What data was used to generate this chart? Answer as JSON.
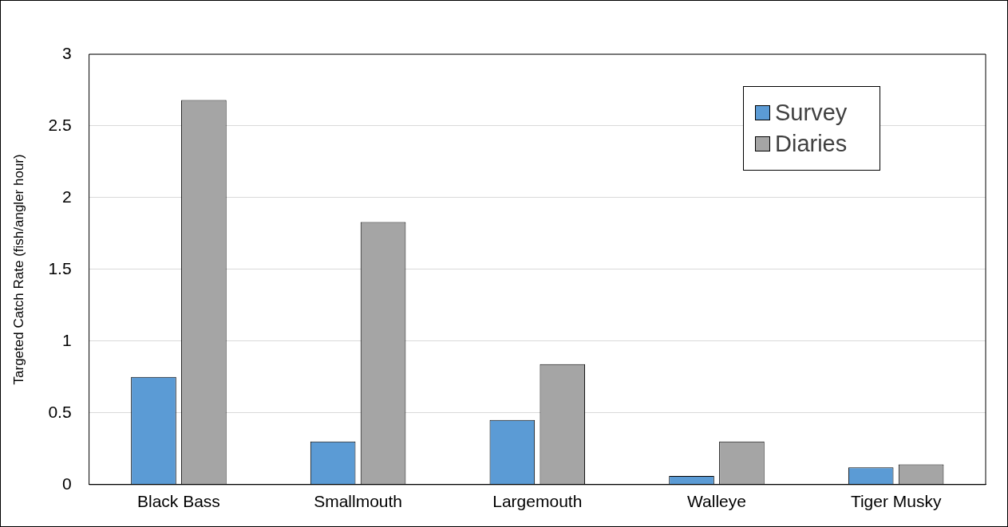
{
  "chart_data": {
    "type": "bar",
    "ylabel": "Targeted Catch Rate (fish/angler hour)",
    "categories": [
      "Black Bass",
      "Smallmouth",
      "Largemouth",
      "Walleye",
      "Tiger Musky"
    ],
    "series": [
      {
        "name": "Survey",
        "color": "#5b9bd5",
        "values": [
          0.75,
          0.3,
          0.45,
          0.06,
          0.12
        ]
      },
      {
        "name": "Diaries",
        "color": "#a5a5a5",
        "values": [
          2.68,
          1.83,
          0.84,
          0.3,
          0.14
        ]
      }
    ],
    "ylim": [
      0,
      3
    ],
    "yticks": [
      0,
      0.5,
      1,
      1.5,
      2,
      2.5,
      3
    ],
    "grid": "y",
    "legend": "top right"
  }
}
